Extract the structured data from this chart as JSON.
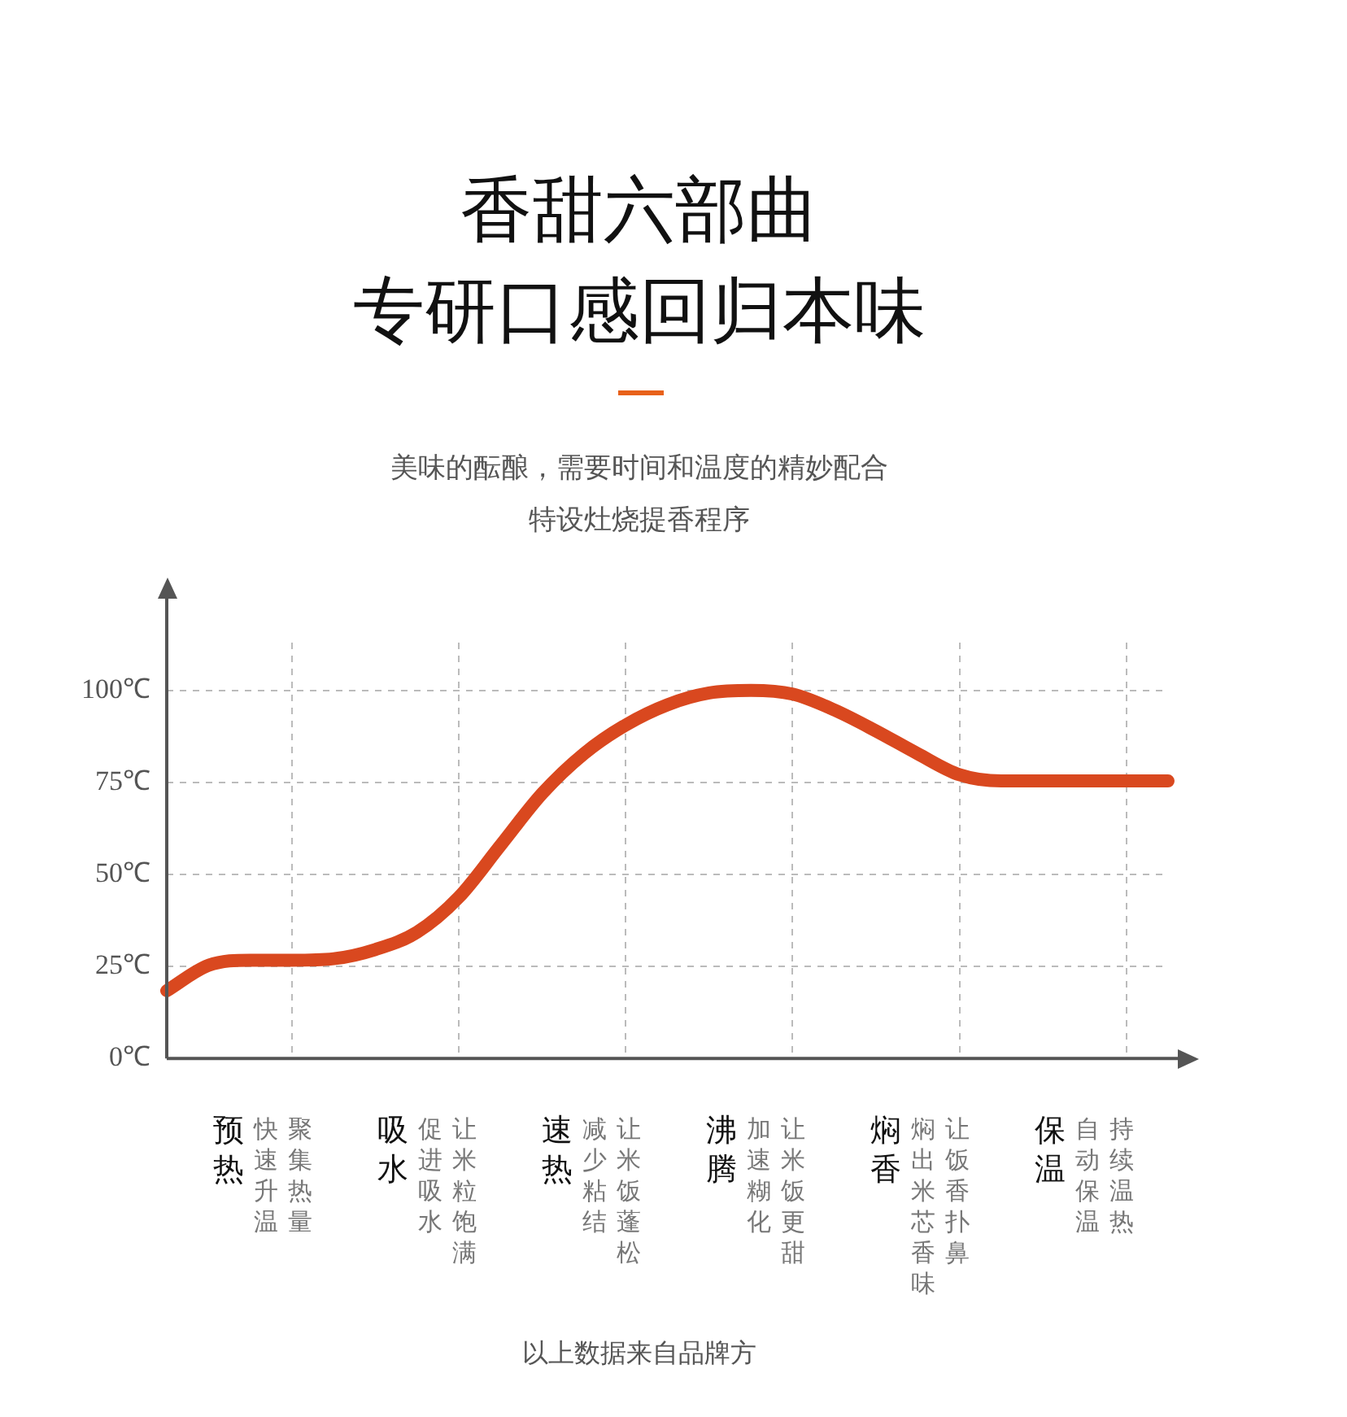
{
  "chart_data": {
    "type": "line",
    "title": "香甜六部曲",
    "subtitle": "专研口感回归本味",
    "annotations": [
      "美味的酝酿，需要时间和温度的精妙配合",
      "特设灶烧提香程序",
      "预热",
      "吸水",
      "速热",
      "沸腾",
      "焖香",
      "保温",
      "快速升温",
      "聚集热量",
      "促进吸水",
      "让米粒饱满",
      "减少粘结",
      "让米饭蓬松",
      "加速糊化",
      "让米饭更甜",
      "焖出米芯香味",
      "让饭香扑鼻",
      "自动保温",
      "持续温热",
      "以上数据来自品牌方"
    ],
    "categories": [
      null,
      null,
      null,
      null,
      null,
      null,
      null,
      null,
      null,
      null,
      null,
      null,
      null,
      null,
      null,
      null,
      null,
      null,
      null,
      null,
      null,
      null,
      null,
      null,
      null
    ],
    "series": [
      {
        "color": "#d9481f",
        "values": [
          18.4,
          25.3,
          26.7,
          26.7,
          27.1,
          29.6,
          34.3,
          43.8,
          57.9,
          72,
          82.8,
          90.6,
          96.1,
          99.3,
          100,
          99,
          94.7,
          89,
          82.8,
          77.1,
          75.4,
          75.4,
          75.4,
          75.4,
          75.4
        ]
      }
    ],
    "ylim": [
      0,
      113
    ],
    "yticks": [
      {
        "value": 0,
        "label": "0℃"
      },
      {
        "value": 25,
        "label": "25℃"
      },
      {
        "value": 50,
        "label": "50℃"
      },
      {
        "value": 75,
        "label": "75℃"
      },
      {
        "value": 100,
        "label": "100℃"
      }
    ],
    "grid": true,
    "legend": false,
    "marker": "none",
    "line_style": "solid"
  }
}
